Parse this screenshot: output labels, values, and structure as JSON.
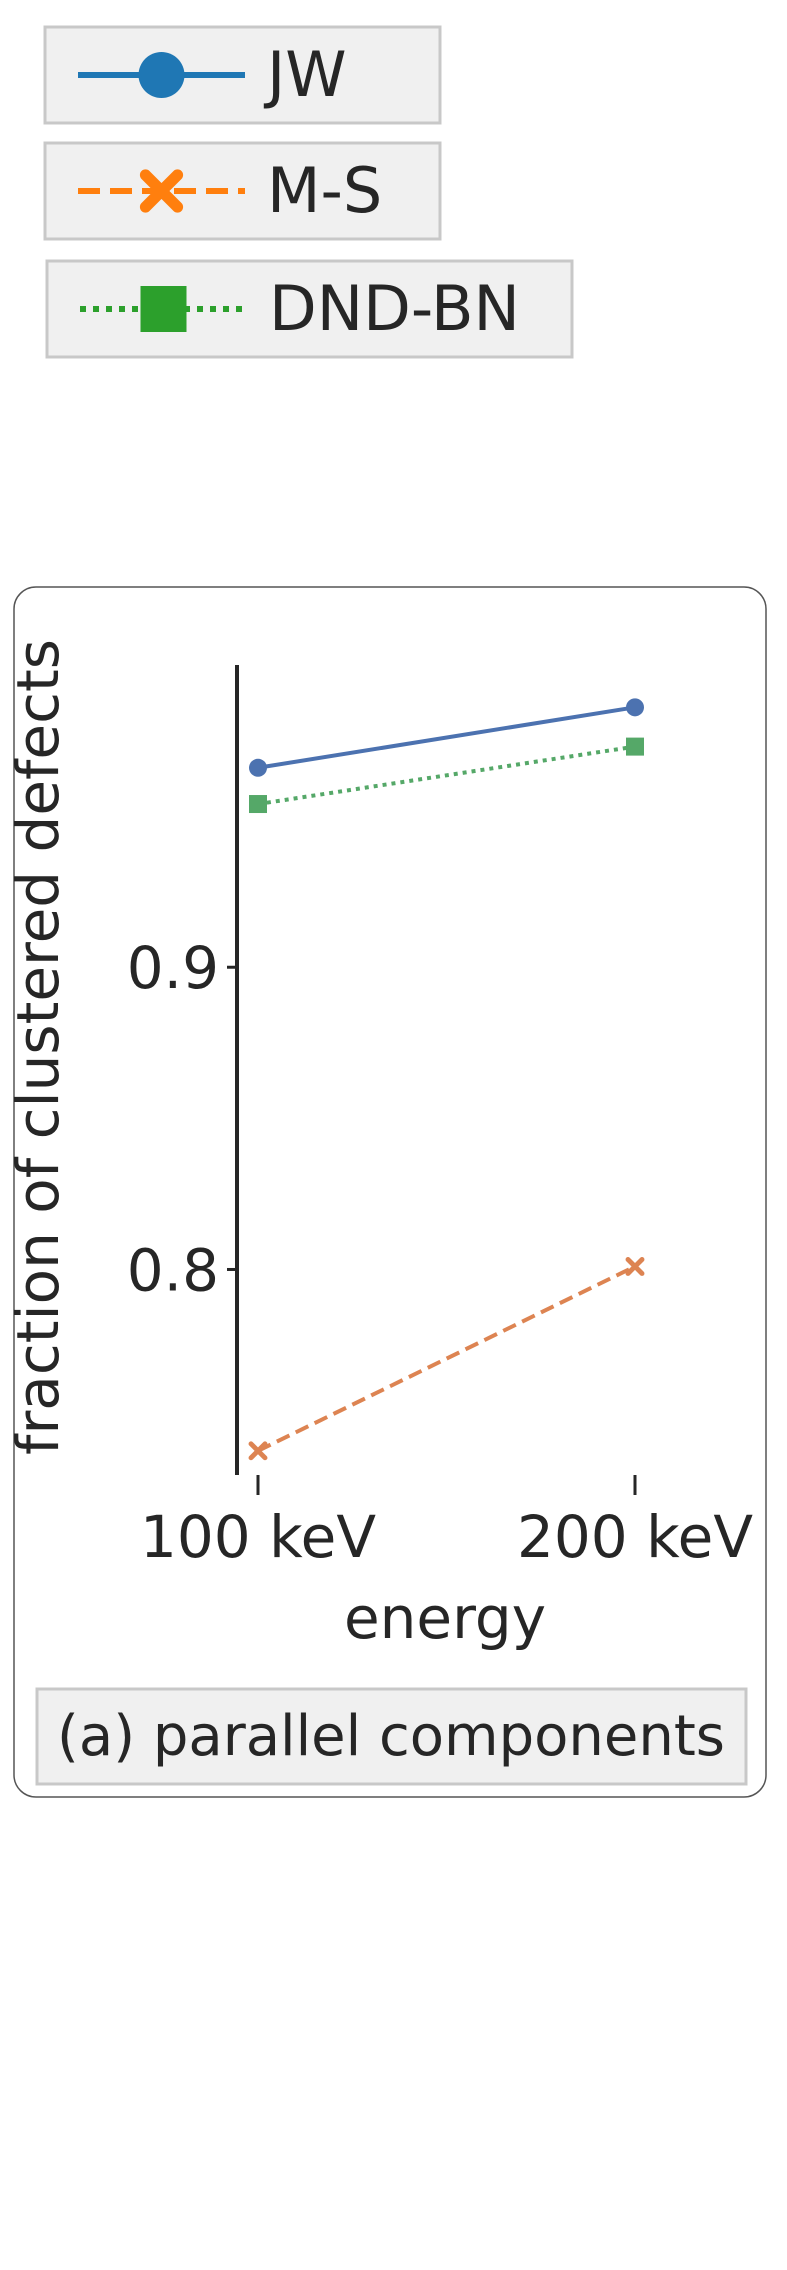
{
  "legend": {
    "items": [
      {
        "label": "JW",
        "color": "#1f77b4",
        "marker": "circle",
        "line": "solid"
      },
      {
        "label": "M-S",
        "color": "#ff7f0e",
        "marker": "x",
        "line": "dashed"
      },
      {
        "label": "DND-BN",
        "color": "#2ca02c",
        "marker": "square",
        "line": "dotted"
      }
    ]
  },
  "chart_data": {
    "type": "line",
    "categories": [
      "100 keV",
      "200 keV"
    ],
    "xlabel": "energy",
    "ylabel": "fraction of clustered defects",
    "yticks": [
      0.8,
      0.9
    ],
    "ytick_labels": [
      "0.8",
      "0.9"
    ],
    "ylim": [
      0.732,
      1.0
    ],
    "grid": false,
    "series": [
      {
        "name": "JW",
        "values": [
          0.966,
          0.986
        ],
        "color": "#4c72b0",
        "marker": "circle",
        "dash": "solid"
      },
      {
        "name": "M-S",
        "values": [
          0.74,
          0.801
        ],
        "color": "#dd8452",
        "marker": "x",
        "dash": "dashed"
      },
      {
        "name": "DND-BN",
        "values": [
          0.954,
          0.973
        ],
        "color": "#55a868",
        "marker": "square",
        "dash": "dotted"
      }
    ]
  },
  "subplot_caption": "(a) parallel components"
}
